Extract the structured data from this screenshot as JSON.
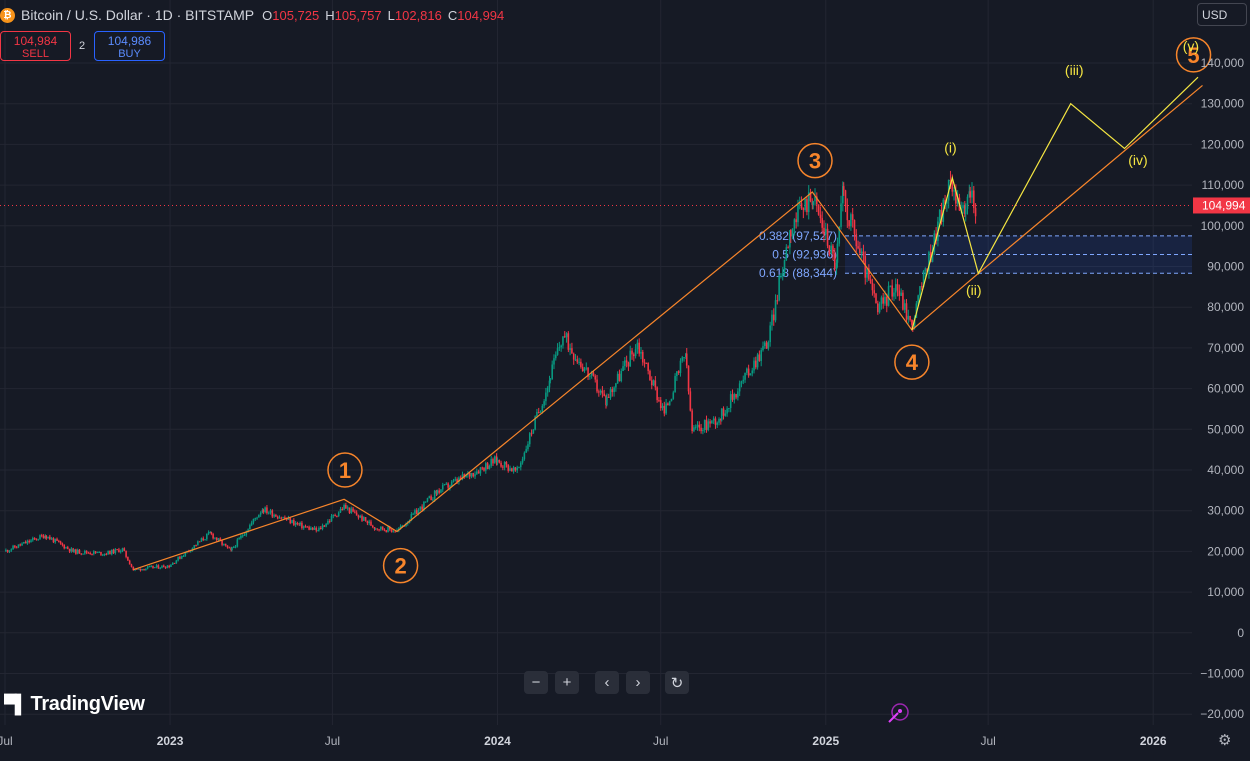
{
  "header": {
    "symbol_icon": "₿",
    "title": "Bitcoin / U.S. Dollar · 1D · BITSTAMP",
    "ohlc": {
      "o_label": "O",
      "o": "105,725",
      "h_label": "H",
      "h": "105,757",
      "l_label": "L",
      "l": "102,816",
      "c_label": "C",
      "c": "104,994"
    }
  },
  "trade": {
    "sell_price": "104,984",
    "sell_label": "SELL",
    "buy_price": "104,986",
    "buy_label": "BUY",
    "spread": "2"
  },
  "currency": "USD",
  "current_price_label": "104,994",
  "y_axis": {
    "ticks": [
      {
        "value": 140000,
        "label": "140,000"
      },
      {
        "value": 130000,
        "label": "130,000"
      },
      {
        "value": 120000,
        "label": "120,000"
      },
      {
        "value": 110000,
        "label": "110,000"
      },
      {
        "value": 100000,
        "label": "100,000"
      },
      {
        "value": 90000,
        "label": "90,000"
      },
      {
        "value": 80000,
        "label": "80,000"
      },
      {
        "value": 70000,
        "label": "70,000"
      },
      {
        "value": 60000,
        "label": "60,000"
      },
      {
        "value": 50000,
        "label": "50,000"
      },
      {
        "value": 40000,
        "label": "40,000"
      },
      {
        "value": 30000,
        "label": "30,000"
      },
      {
        "value": 20000,
        "label": "20,000"
      },
      {
        "value": 10000,
        "label": "10,000"
      },
      {
        "value": 0,
        "label": "0"
      },
      {
        "value": -10000,
        "label": "−10,000"
      },
      {
        "value": -20000,
        "label": "−20,000"
      }
    ]
  },
  "x_axis": {
    "ticks": [
      {
        "date": "2022-07-01",
        "label": "Jul",
        "bold": false
      },
      {
        "date": "2023-01-01",
        "label": "2023",
        "bold": true
      },
      {
        "date": "2023-07-01",
        "label": "Jul",
        "bold": false
      },
      {
        "date": "2024-01-01",
        "label": "2024",
        "bold": true
      },
      {
        "date": "2024-07-01",
        "label": "Jul",
        "bold": false
      },
      {
        "date": "2025-01-01",
        "label": "2025",
        "bold": true
      },
      {
        "date": "2025-07-01",
        "label": "Jul",
        "bold": false
      },
      {
        "date": "2026-01-01",
        "label": "2026",
        "bold": true
      }
    ]
  },
  "fib_levels": [
    {
      "ratio": "0.382",
      "price": 97527,
      "label": "0.382 (97,527)"
    },
    {
      "ratio": "0.5",
      "price": 92936,
      "label": "0.5 (92,936)"
    },
    {
      "ratio": "0.618",
      "price": 88344,
      "label": "0.618 (88,344)"
    }
  ],
  "wave_labels_major": [
    {
      "label": "1",
      "date": "2023-07-15",
      "price": 40000
    },
    {
      "label": "2",
      "date": "2023-09-15",
      "price": 16500
    },
    {
      "label": "3",
      "date": "2024-12-20",
      "price": 116000
    },
    {
      "label": "4",
      "date": "2025-04-07",
      "price": 66500
    },
    {
      "label": "5",
      "date": "2026-02-15",
      "price": 142000
    }
  ],
  "wave_labels_minor": [
    {
      "label": "(i)",
      "date": "2025-05-20",
      "price": 118000
    },
    {
      "label": "(ii)",
      "date": "2025-06-15",
      "price": 83000
    },
    {
      "label": "(iii)",
      "date": "2025-10-05",
      "price": 137000
    },
    {
      "label": "(iv)",
      "date": "2025-12-15",
      "price": 115000
    },
    {
      "label": "(v)",
      "date": "2026-02-12",
      "price": 143000
    }
  ],
  "wave_major_path": [
    {
      "date": "2022-11-21",
      "price": 15500
    },
    {
      "date": "2023-07-14",
      "price": 32800
    },
    {
      "date": "2023-09-11",
      "price": 24900
    },
    {
      "date": "2024-12-17",
      "price": 108300
    },
    {
      "date": "2025-04-07",
      "price": 74400
    },
    {
      "date": "2025-06-20",
      "price": 88300
    },
    {
      "date": "2026-02-25",
      "price": 134500
    }
  ],
  "wave_minor_path": [
    {
      "date": "2025-04-07",
      "price": 74400
    },
    {
      "date": "2025-05-22",
      "price": 111800
    },
    {
      "date": "2025-06-20",
      "price": 88300
    },
    {
      "date": "2025-10-01",
      "price": 130000
    },
    {
      "date": "2025-11-30",
      "price": 119000
    },
    {
      "date": "2026-02-20",
      "price": 136500
    }
  ],
  "chart_data": {
    "type": "candlestick",
    "title": "Bitcoin / U.S. Dollar · 1D · BITSTAMP",
    "xlabel": "",
    "ylabel": "",
    "ylim": [
      -23000,
      151000
    ],
    "xlim": [
      "2022-07-01",
      "2026-04-10"
    ],
    "current_price": 104994,
    "price_path": [
      {
        "date": "2022-07-01",
        "price": 20000
      },
      {
        "date": "2022-08-15",
        "price": 24000
      },
      {
        "date": "2022-09-15",
        "price": 20000
      },
      {
        "date": "2022-10-20",
        "price": 19500
      },
      {
        "date": "2022-11-09",
        "price": 20500
      },
      {
        "date": "2022-11-21",
        "price": 15500
      },
      {
        "date": "2022-12-31",
        "price": 16500
      },
      {
        "date": "2023-02-15",
        "price": 24500
      },
      {
        "date": "2023-03-10",
        "price": 20000
      },
      {
        "date": "2023-04-14",
        "price": 30500
      },
      {
        "date": "2023-05-25",
        "price": 26500
      },
      {
        "date": "2023-06-15",
        "price": 25000
      },
      {
        "date": "2023-07-14",
        "price": 31000
      },
      {
        "date": "2023-08-17",
        "price": 26000
      },
      {
        "date": "2023-09-11",
        "price": 25000
      },
      {
        "date": "2023-10-25",
        "price": 34500
      },
      {
        "date": "2023-12-31",
        "price": 42500
      },
      {
        "date": "2024-01-23",
        "price": 39500
      },
      {
        "date": "2024-02-28",
        "price": 62000
      },
      {
        "date": "2024-03-14",
        "price": 73000
      },
      {
        "date": "2024-05-01",
        "price": 57000
      },
      {
        "date": "2024-06-05",
        "price": 71000
      },
      {
        "date": "2024-07-05",
        "price": 54000
      },
      {
        "date": "2024-07-29",
        "price": 69000
      },
      {
        "date": "2024-08-05",
        "price": 49500
      },
      {
        "date": "2024-09-06",
        "price": 53000
      },
      {
        "date": "2024-10-29",
        "price": 72000
      },
      {
        "date": "2024-11-22",
        "price": 99000
      },
      {
        "date": "2024-12-17",
        "price": 108000
      },
      {
        "date": "2025-01-13",
        "price": 90000
      },
      {
        "date": "2025-01-20",
        "price": 108000
      },
      {
        "date": "2025-02-28",
        "price": 79000
      },
      {
        "date": "2025-03-20",
        "price": 86000
      },
      {
        "date": "2025-04-07",
        "price": 75000
      },
      {
        "date": "2025-05-08",
        "price": 102000
      },
      {
        "date": "2025-05-22",
        "price": 111000
      },
      {
        "date": "2025-06-05",
        "price": 101000
      },
      {
        "date": "2025-06-10",
        "price": 109000
      },
      {
        "date": "2025-06-17",
        "price": 104994
      }
    ]
  }
}
